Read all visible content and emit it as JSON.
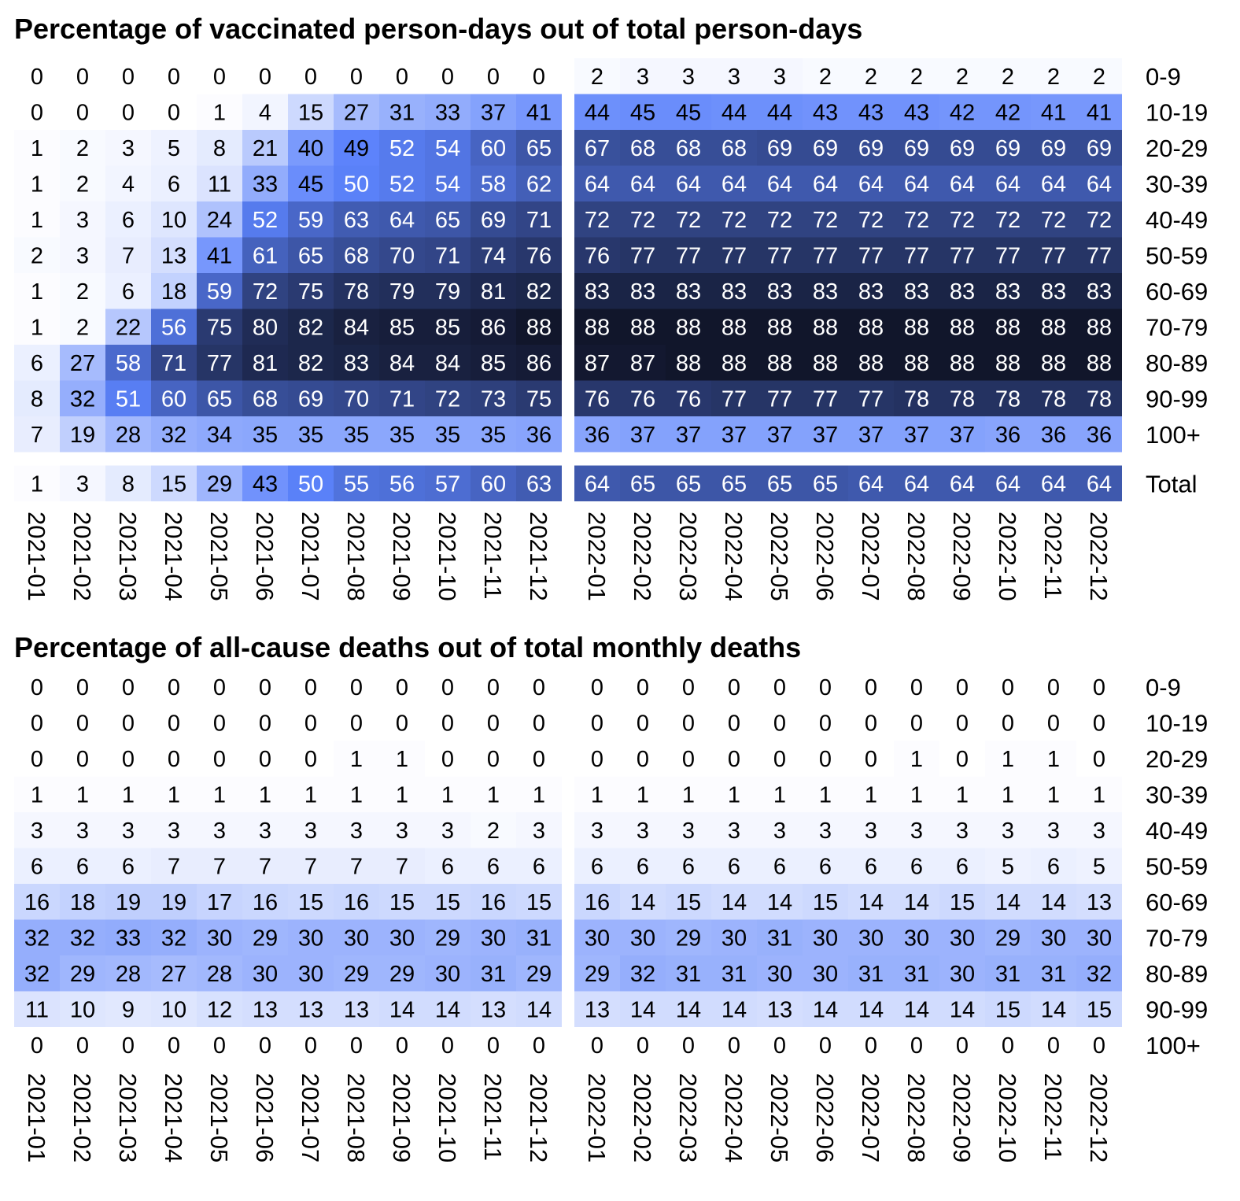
{
  "chart_data": [
    {
      "type": "heatmap",
      "title": "Percentage of vaccinated person-days out of total person-days",
      "months": [
        "2021-01",
        "2021-02",
        "2021-03",
        "2021-04",
        "2021-05",
        "2021-06",
        "2021-07",
        "2021-08",
        "2021-09",
        "2021-10",
        "2021-11",
        "2021-12",
        "2022-01",
        "2022-02",
        "2022-03",
        "2022-04",
        "2022-05",
        "2022-06",
        "2022-07",
        "2022-08",
        "2022-09",
        "2022-10",
        "2022-11",
        "2022-12"
      ],
      "age_groups": [
        "0-9",
        "10-19",
        "20-29",
        "30-39",
        "40-49",
        "50-59",
        "60-69",
        "70-79",
        "80-89",
        "90-99",
        "100+"
      ],
      "values": [
        [
          0,
          0,
          0,
          0,
          0,
          0,
          0,
          0,
          0,
          0,
          0,
          0,
          2,
          3,
          3,
          3,
          3,
          2,
          2,
          2,
          2,
          2,
          2,
          2
        ],
        [
          0,
          0,
          0,
          0,
          1,
          4,
          15,
          27,
          31,
          33,
          37,
          41,
          44,
          45,
          45,
          44,
          44,
          43,
          43,
          43,
          42,
          42,
          41,
          41
        ],
        [
          1,
          2,
          3,
          5,
          8,
          21,
          40,
          49,
          52,
          54,
          60,
          65,
          67,
          68,
          68,
          68,
          69,
          69,
          69,
          69,
          69,
          69,
          69,
          69
        ],
        [
          1,
          2,
          4,
          6,
          11,
          33,
          45,
          50,
          52,
          54,
          58,
          62,
          64,
          64,
          64,
          64,
          64,
          64,
          64,
          64,
          64,
          64,
          64,
          64
        ],
        [
          1,
          3,
          6,
          10,
          24,
          52,
          59,
          63,
          64,
          65,
          69,
          71,
          72,
          72,
          72,
          72,
          72,
          72,
          72,
          72,
          72,
          72,
          72,
          72
        ],
        [
          2,
          3,
          7,
          13,
          41,
          61,
          65,
          68,
          70,
          71,
          74,
          76,
          76,
          77,
          77,
          77,
          77,
          77,
          77,
          77,
          77,
          77,
          77,
          77
        ],
        [
          1,
          2,
          6,
          18,
          59,
          72,
          75,
          78,
          79,
          79,
          81,
          82,
          83,
          83,
          83,
          83,
          83,
          83,
          83,
          83,
          83,
          83,
          83,
          83
        ],
        [
          1,
          2,
          22,
          56,
          75,
          80,
          82,
          84,
          85,
          85,
          86,
          88,
          88,
          88,
          88,
          88,
          88,
          88,
          88,
          88,
          88,
          88,
          88,
          88
        ],
        [
          6,
          27,
          58,
          71,
          77,
          81,
          82,
          83,
          84,
          84,
          85,
          86,
          87,
          87,
          88,
          88,
          88,
          88,
          88,
          88,
          88,
          88,
          88,
          88
        ],
        [
          8,
          32,
          51,
          60,
          65,
          68,
          69,
          70,
          71,
          72,
          73,
          75,
          76,
          76,
          76,
          77,
          77,
          77,
          77,
          78,
          78,
          78,
          78,
          78
        ],
        [
          7,
          19,
          28,
          32,
          34,
          35,
          35,
          35,
          35,
          35,
          35,
          36,
          36,
          37,
          37,
          37,
          37,
          37,
          37,
          37,
          37,
          36,
          36,
          36
        ]
      ],
      "total_label": "Total",
      "total_values": [
        1,
        3,
        8,
        15,
        29,
        43,
        50,
        55,
        56,
        57,
        60,
        63,
        64,
        65,
        65,
        65,
        65,
        65,
        64,
        64,
        64,
        64,
        64,
        64
      ]
    },
    {
      "type": "heatmap",
      "title": "Percentage of all-cause deaths out of total monthly deaths",
      "months": [
        "2021-01",
        "2021-02",
        "2021-03",
        "2021-04",
        "2021-05",
        "2021-06",
        "2021-07",
        "2021-08",
        "2021-09",
        "2021-10",
        "2021-11",
        "2021-12",
        "2022-01",
        "2022-02",
        "2022-03",
        "2022-04",
        "2022-05",
        "2022-06",
        "2022-07",
        "2022-08",
        "2022-09",
        "2022-10",
        "2022-11",
        "2022-12"
      ],
      "age_groups": [
        "0-9",
        "10-19",
        "20-29",
        "30-39",
        "40-49",
        "50-59",
        "60-69",
        "70-79",
        "80-89",
        "90-99",
        "100+"
      ],
      "values": [
        [
          0,
          0,
          0,
          0,
          0,
          0,
          0,
          0,
          0,
          0,
          0,
          0,
          0,
          0,
          0,
          0,
          0,
          0,
          0,
          0,
          0,
          0,
          0,
          0
        ],
        [
          0,
          0,
          0,
          0,
          0,
          0,
          0,
          0,
          0,
          0,
          0,
          0,
          0,
          0,
          0,
          0,
          0,
          0,
          0,
          0,
          0,
          0,
          0,
          0
        ],
        [
          0,
          0,
          0,
          0,
          0,
          0,
          0,
          1,
          1,
          0,
          0,
          0,
          0,
          0,
          0,
          0,
          0,
          0,
          0,
          1,
          0,
          1,
          1,
          0
        ],
        [
          1,
          1,
          1,
          1,
          1,
          1,
          1,
          1,
          1,
          1,
          1,
          1,
          1,
          1,
          1,
          1,
          1,
          1,
          1,
          1,
          1,
          1,
          1,
          1
        ],
        [
          3,
          3,
          3,
          3,
          3,
          3,
          3,
          3,
          3,
          3,
          2,
          3,
          3,
          3,
          3,
          3,
          3,
          3,
          3,
          3,
          3,
          3,
          3,
          3
        ],
        [
          6,
          6,
          6,
          7,
          7,
          7,
          7,
          7,
          7,
          6,
          6,
          6,
          6,
          6,
          6,
          6,
          6,
          6,
          6,
          6,
          6,
          5,
          6,
          5
        ],
        [
          16,
          18,
          19,
          19,
          17,
          16,
          15,
          16,
          15,
          15,
          16,
          15,
          16,
          14,
          15,
          14,
          14,
          15,
          14,
          14,
          15,
          14,
          14,
          13
        ],
        [
          32,
          32,
          33,
          32,
          30,
          29,
          30,
          30,
          30,
          29,
          30,
          31,
          30,
          30,
          29,
          30,
          31,
          30,
          30,
          30,
          30,
          29,
          30,
          30
        ],
        [
          32,
          29,
          28,
          27,
          28,
          30,
          30,
          29,
          29,
          30,
          31,
          29,
          29,
          32,
          31,
          31,
          30,
          30,
          31,
          31,
          30,
          31,
          31,
          32
        ],
        [
          11,
          10,
          9,
          10,
          12,
          13,
          13,
          13,
          14,
          14,
          13,
          14,
          13,
          14,
          14,
          14,
          13,
          14,
          14,
          14,
          14,
          15,
          14,
          15
        ],
        [
          0,
          0,
          0,
          0,
          0,
          0,
          0,
          0,
          0,
          0,
          0,
          0,
          0,
          0,
          0,
          0,
          0,
          0,
          0,
          0,
          0,
          0,
          0,
          0
        ]
      ]
    }
  ],
  "colors": {
    "scale_low": "#ffffff",
    "scale_mid": "#5b82fb",
    "scale_high": "#0d1020",
    "text_dark": "#000000",
    "text_light": "#ffffff"
  }
}
